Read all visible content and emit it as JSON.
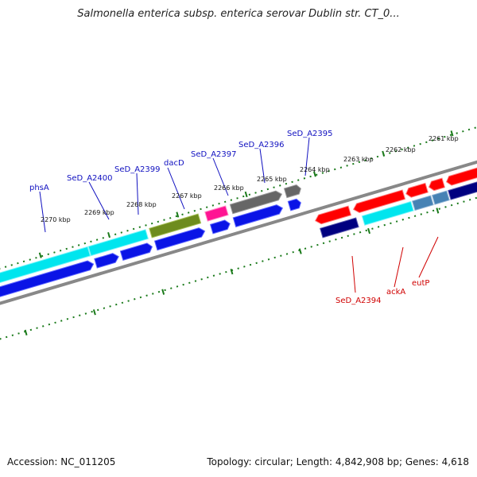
{
  "title": "Salmonella enterica subsp. enterica serovar Dublin str. CT_0...",
  "accession": "Accession: NC_011205",
  "summary": "Topology: circular; Length: 4,842,908 bp; Genes: 4,618",
  "scale_labels": [
    "2270 kbp",
    "2269 kbp",
    "2268 kbp",
    "2267 kbp",
    "2266 kbp",
    "2265 kbp",
    "2264 kbp",
    "2263 kbp",
    "2262 kbp",
    "2261 kbp"
  ],
  "gene_labels": {
    "phsA": "phsA",
    "SeD_A2400": "SeD_A2400",
    "SeD_A2399": "SeD_A2399",
    "dacD": "dacD",
    "SeD_A2397": "SeD_A2397",
    "SeD_A2396": "SeD_A2396",
    "SeD_A2395": "SeD_A2395",
    "SeD_A2394": "SeD_A2394",
    "ackA": "ackA",
    "eutP": "eutP"
  },
  "colors": {
    "label_forward": "#1010c0",
    "label_reverse": "#d00000",
    "ruler_tick": "#1a7a1a",
    "backbone": "#888888",
    "cds_blue": "#0a14e6",
    "cds_cyan": "#00e5ee",
    "cds_olive": "#6e8c1e",
    "cds_magenta": "#ff1493",
    "cds_gray": "#666666",
    "cds_red": "#ff0000",
    "cds_navy": "#000080",
    "cds_steelblue": "#4682b4"
  }
}
